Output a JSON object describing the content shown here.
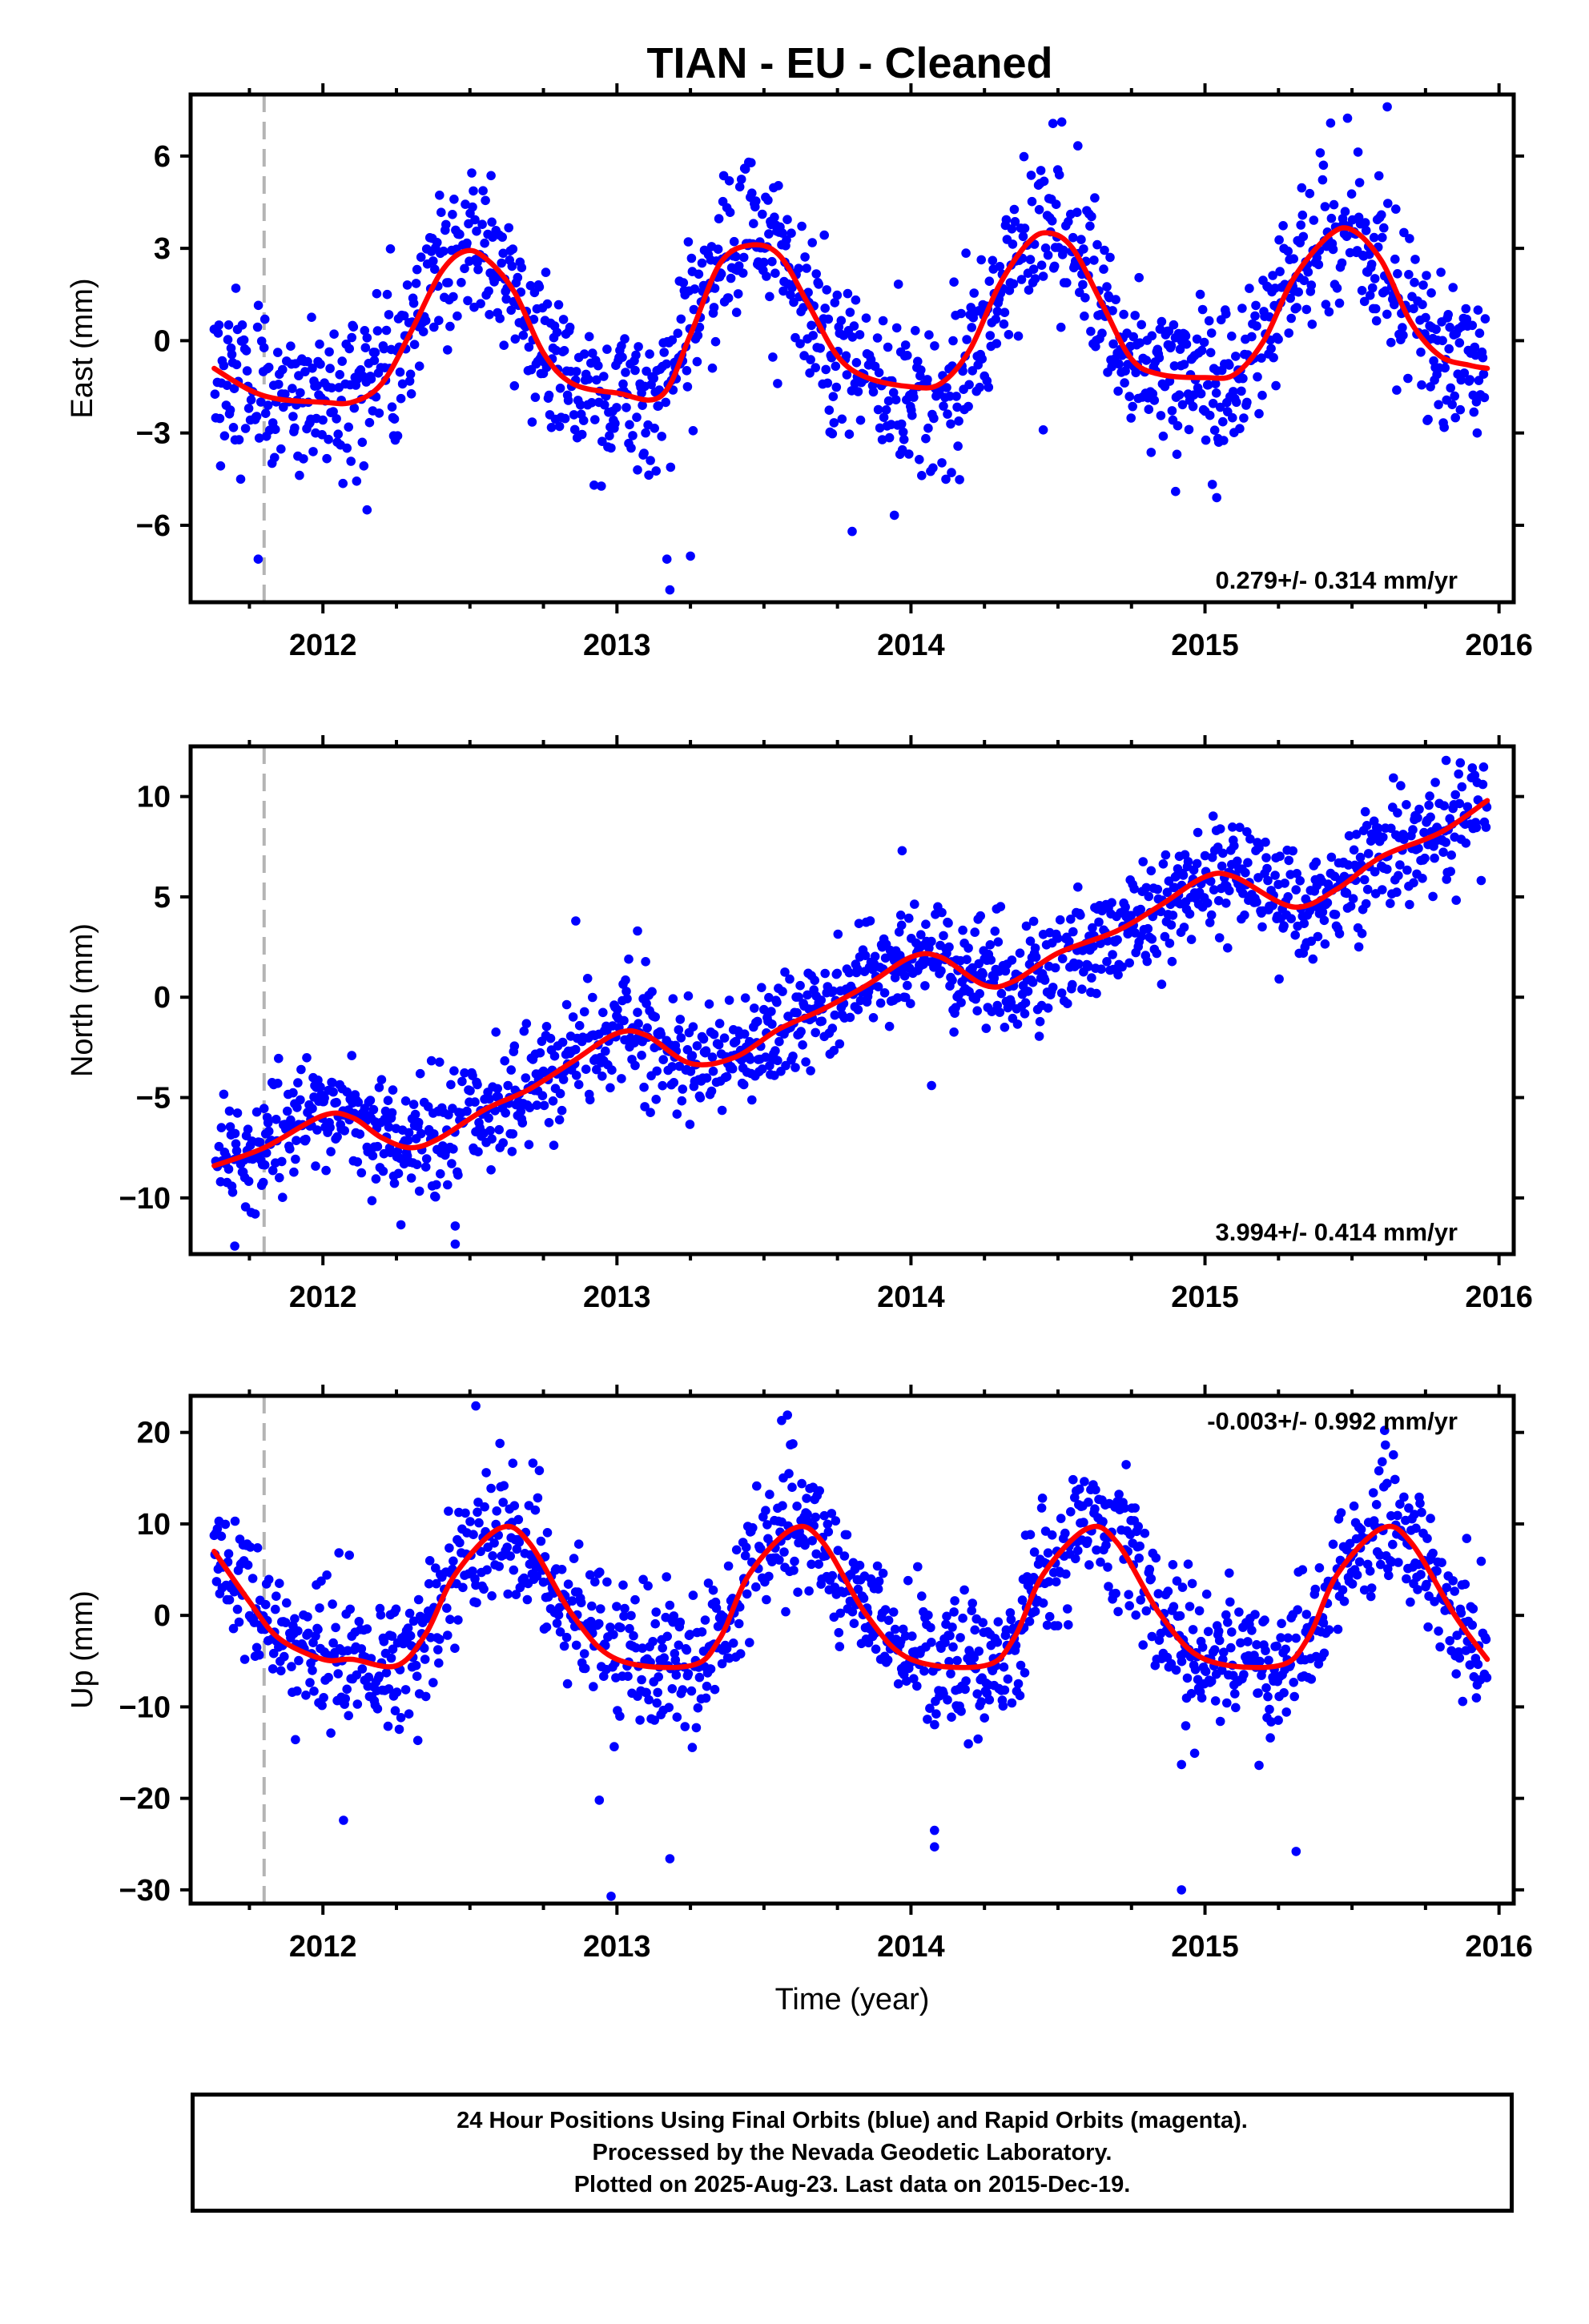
{
  "title": "TIAN  - EU - Cleaned",
  "colors": {
    "final_orbits": "#0000ff",
    "model_fit": "#ff0000",
    "equipment_change": "#b4b4b4",
    "frame": "#000000"
  },
  "chart_data": [
    {
      "type": "scatter",
      "panel": "east",
      "ylabel": "East (mm)",
      "xlabel": "",
      "xlim": [
        2011.55,
        2016.05
      ],
      "ylim": [
        -8.5,
        8
      ],
      "yticks": [
        -6,
        -3,
        0,
        3,
        6
      ],
      "ytick_labels": [
        "−6",
        "−3",
        "0",
        "3",
        "6"
      ],
      "xticks": [
        2012,
        2013,
        2014,
        2015,
        2016
      ],
      "xtick_labels": [
        "2012",
        "2013",
        "2014",
        "2015",
        "2016"
      ],
      "rate_label": "0.279+/- 0.314 mm/yr",
      "rate_position": "bottom-right",
      "equipment_change_x": 2011.8,
      "data_start": 2011.63,
      "data_end": 2015.96,
      "fit": [
        [
          2011.63,
          -0.9
        ],
        [
          2011.75,
          -1.6
        ],
        [
          2011.85,
          -1.9
        ],
        [
          2012.0,
          -2.0
        ],
        [
          2012.1,
          -2.0
        ],
        [
          2012.2,
          -1.4
        ],
        [
          2012.3,
          0.3
        ],
        [
          2012.4,
          2.2
        ],
        [
          2012.48,
          2.9
        ],
        [
          2012.55,
          2.7
        ],
        [
          2012.65,
          1.6
        ],
        [
          2012.75,
          -0.4
        ],
        [
          2012.85,
          -1.4
        ],
        [
          2013.0,
          -1.7
        ],
        [
          2013.15,
          -1.8
        ],
        [
          2013.25,
          0.2
        ],
        [
          2013.35,
          2.5
        ],
        [
          2013.45,
          3.1
        ],
        [
          2013.55,
          2.8
        ],
        [
          2013.65,
          1.2
        ],
        [
          2013.75,
          -0.5
        ],
        [
          2013.85,
          -1.2
        ],
        [
          2014.0,
          -1.5
        ],
        [
          2014.1,
          -1.4
        ],
        [
          2014.2,
          -0.3
        ],
        [
          2014.3,
          1.8
        ],
        [
          2014.4,
          3.2
        ],
        [
          2014.47,
          3.5
        ],
        [
          2014.55,
          3.0
        ],
        [
          2014.65,
          1.2
        ],
        [
          2014.75,
          -0.6
        ],
        [
          2014.85,
          -1.1
        ],
        [
          2015.0,
          -1.2
        ],
        [
          2015.1,
          -1.1
        ],
        [
          2015.2,
          0.0
        ],
        [
          2015.3,
          2.0
        ],
        [
          2015.42,
          3.4
        ],
        [
          2015.5,
          3.6
        ],
        [
          2015.6,
          2.6
        ],
        [
          2015.7,
          0.6
        ],
        [
          2015.8,
          -0.5
        ],
        [
          2015.9,
          -0.8
        ],
        [
          2015.96,
          -0.9
        ]
      ],
      "fit_bumps": [
        [
          2012.48,
          3.8,
          0.1
        ],
        [
          2013.45,
          3.7,
          0.08
        ],
        [
          2014.47,
          3.2,
          0.1
        ],
        [
          2015.5,
          3.4,
          0.1
        ]
      ],
      "scatter_sigma": 1.3,
      "outliers": [
        [
          2011.78,
          -7.1
        ],
        [
          2012.15,
          -5.5
        ],
        [
          2013.17,
          -7.1
        ],
        [
          2013.18,
          -8.1
        ],
        [
          2013.25,
          -7.0
        ],
        [
          2013.8,
          -6.2
        ],
        [
          2014.45,
          -2.9
        ],
        [
          2014.9,
          -4.9
        ],
        [
          2015.04,
          -5.1
        ],
        [
          2015.62,
          7.6
        ]
      ],
      "seed": 11
    },
    {
      "type": "scatter",
      "panel": "north",
      "ylabel": "North (mm)",
      "xlabel": "",
      "xlim": [
        2011.55,
        2016.05
      ],
      "ylim": [
        -12.8,
        12.5
      ],
      "yticks": [
        -10,
        -5,
        0,
        5,
        10
      ],
      "ytick_labels": [
        "−10",
        "−5",
        "0",
        "5",
        "10"
      ],
      "xticks": [
        2012,
        2013,
        2014,
        2015,
        2016
      ],
      "xtick_labels": [
        "2012",
        "2013",
        "2014",
        "2015",
        "2016"
      ],
      "rate_label": "3.994+/- 0.414 mm/yr",
      "rate_position": "bottom-right",
      "equipment_change_x": 2011.8,
      "data_start": 2011.63,
      "data_end": 2015.96,
      "fit": [
        [
          2011.63,
          -8.4
        ],
        [
          2011.8,
          -7.5
        ],
        [
          2012.0,
          -5.9
        ],
        [
          2012.1,
          -6.0
        ],
        [
          2012.2,
          -7.0
        ],
        [
          2012.3,
          -7.5
        ],
        [
          2012.4,
          -7.0
        ],
        [
          2012.55,
          -5.6
        ],
        [
          2012.7,
          -4.6
        ],
        [
          2012.85,
          -3.2
        ],
        [
          2013.0,
          -1.8
        ],
        [
          2013.1,
          -1.9
        ],
        [
          2013.25,
          -3.3
        ],
        [
          2013.4,
          -3.0
        ],
        [
          2013.55,
          -1.6
        ],
        [
          2013.7,
          -0.6
        ],
        [
          2013.85,
          0.6
        ],
        [
          2014.0,
          2.0
        ],
        [
          2014.1,
          2.0
        ],
        [
          2014.25,
          0.6
        ],
        [
          2014.35,
          0.8
        ],
        [
          2014.5,
          2.2
        ],
        [
          2014.7,
          3.3
        ],
        [
          2014.85,
          4.6
        ],
        [
          2015.0,
          6.0
        ],
        [
          2015.1,
          6.0
        ],
        [
          2015.3,
          4.5
        ],
        [
          2015.45,
          5.4
        ],
        [
          2015.6,
          7.0
        ],
        [
          2015.8,
          8.2
        ],
        [
          2015.96,
          9.8
        ]
      ],
      "fit_bumps": [
        [
          2012.02,
          1.4,
          0.08
        ],
        [
          2013.04,
          2.0,
          0.1
        ],
        [
          2014.5,
          -1.8,
          0.12
        ],
        [
          2015.02,
          2.0,
          0.08
        ]
      ],
      "scatter_sigma": 1.4,
      "outliers": [
        [
          2011.7,
          -12.4
        ],
        [
          2012.45,
          -12.3
        ],
        [
          2012.45,
          -11.4
        ],
        [
          2012.86,
          3.8
        ],
        [
          2013.07,
          3.3
        ],
        [
          2013.97,
          7.3
        ],
        [
          2014.07,
          -4.4
        ],
        [
          2015.82,
          11.8
        ]
      ],
      "seed": 23
    },
    {
      "type": "scatter",
      "panel": "up",
      "ylabel": "Up (mm)",
      "xlabel": "Time (year)",
      "xlim": [
        2011.55,
        2016.05
      ],
      "ylim": [
        -31.5,
        24
      ],
      "yticks": [
        -30,
        -20,
        -10,
        0,
        10,
        20
      ],
      "ytick_labels": [
        "−30",
        "−20",
        "−10",
        "0",
        "10",
        "20"
      ],
      "xticks": [
        2012,
        2013,
        2014,
        2015,
        2016
      ],
      "xtick_labels": [
        "2012",
        "2013",
        "2014",
        "2015",
        "2016"
      ],
      "rate_label": "-0.003+/- 0.992 mm/yr",
      "rate_position": "top-right",
      "equipment_change_x": 2011.8,
      "data_start": 2011.63,
      "data_end": 2015.96,
      "fit": [
        [
          2011.63,
          7.0
        ],
        [
          2011.75,
          1.5
        ],
        [
          2011.85,
          -2.5
        ],
        [
          2012.0,
          -4.8
        ],
        [
          2012.1,
          -4.8
        ],
        [
          2012.25,
          -5.5
        ],
        [
          2012.35,
          -2.0
        ],
        [
          2012.45,
          4.5
        ],
        [
          2012.6,
          9.5
        ],
        [
          2012.7,
          8.0
        ],
        [
          2012.85,
          0.0
        ],
        [
          2013.0,
          -4.8
        ],
        [
          2013.25,
          -5.5
        ],
        [
          2013.35,
          -2.5
        ],
        [
          2013.45,
          4.5
        ],
        [
          2013.6,
          9.5
        ],
        [
          2013.7,
          8.0
        ],
        [
          2013.85,
          0.0
        ],
        [
          2014.0,
          -4.8
        ],
        [
          2014.25,
          -5.5
        ],
        [
          2014.35,
          -2.5
        ],
        [
          2014.45,
          4.5
        ],
        [
          2014.6,
          9.5
        ],
        [
          2014.7,
          8.0
        ],
        [
          2014.85,
          0.0
        ],
        [
          2015.0,
          -4.8
        ],
        [
          2015.25,
          -5.5
        ],
        [
          2015.35,
          -2.5
        ],
        [
          2015.45,
          4.5
        ],
        [
          2015.6,
          9.5
        ],
        [
          2015.7,
          8.0
        ],
        [
          2015.85,
          0.0
        ],
        [
          2015.96,
          -4.8
        ]
      ],
      "fit_bumps": [
        [
          2012.6,
          4.5,
          0.09
        ],
        [
          2013.6,
          4.5,
          0.09
        ],
        [
          2014.6,
          4.5,
          0.09
        ],
        [
          2015.6,
          3.5,
          0.09
        ]
      ],
      "scatter_sigma": 3.8,
      "outliers": [
        [
          2012.52,
          22.9
        ],
        [
          2013.58,
          21.9
        ],
        [
          2013.56,
          21.3
        ],
        [
          2012.98,
          -30.7
        ],
        [
          2012.94,
          -20.2
        ],
        [
          2013.18,
          -26.6
        ],
        [
          2012.07,
          -22.4
        ],
        [
          2014.08,
          -23.5
        ],
        [
          2014.08,
          -25.3
        ],
        [
          2014.92,
          -30.0
        ],
        [
          2015.31,
          -25.8
        ],
        [
          2014.92,
          -16.3
        ]
      ],
      "seed": 37
    }
  ],
  "footer": {
    "line1": "24 Hour Positions Using Final Orbits (blue) and Rapid Orbits (magenta).",
    "line2": "Processed by the Nevada Geodetic Laboratory.",
    "line3": "Plotted on 2025-Aug-23. Last data on 2015-Dec-19."
  }
}
